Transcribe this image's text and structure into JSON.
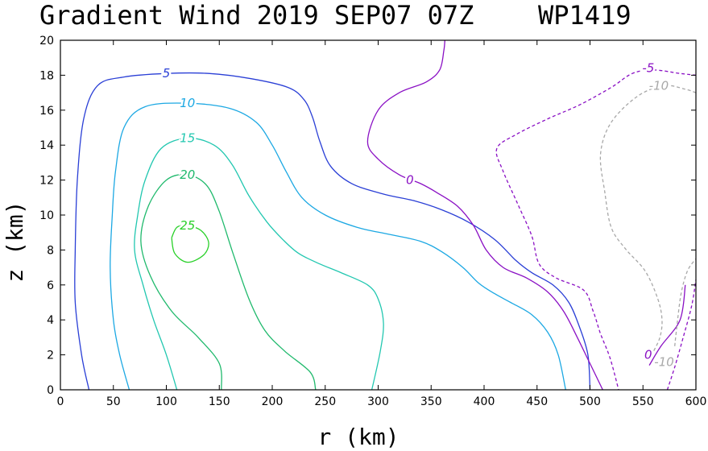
{
  "chart_data": {
    "type": "contour",
    "title": "Gradient Wind 2019 SEP07 07Z",
    "storm_id": "WP1419",
    "xlabel": "r (km)",
    "ylabel": "z (km)",
    "xlim": [
      0,
      600
    ],
    "ylim": [
      0,
      20
    ],
    "xticks": [
      "0",
      "50",
      "100",
      "150",
      "200",
      "250",
      "300",
      "350",
      "400",
      "450",
      "500",
      "550",
      "600"
    ],
    "yticks": [
      "0",
      "2",
      "4",
      "6",
      "8",
      "10",
      "12",
      "14",
      "16",
      "18",
      "20"
    ],
    "contours": [
      {
        "level": 5,
        "label": "5",
        "color": "#2a3fd6",
        "dashed": false,
        "label_at": [
          100,
          18.1
        ],
        "points": [
          [
            27,
            0
          ],
          [
            20,
            2
          ],
          [
            14,
            5
          ],
          [
            14,
            8
          ],
          [
            16,
            12
          ],
          [
            22,
            15.5
          ],
          [
            35,
            17.4
          ],
          [
            60,
            17.9
          ],
          [
            100,
            18.1
          ],
          [
            140,
            18.1
          ],
          [
            180,
            17.8
          ],
          [
            215,
            17.3
          ],
          [
            230,
            16.6
          ],
          [
            238,
            15.6
          ],
          [
            245,
            14.2
          ],
          [
            255,
            12.8
          ],
          [
            275,
            11.8
          ],
          [
            305,
            11.2
          ],
          [
            335,
            10.8
          ],
          [
            360,
            10.3
          ],
          [
            385,
            9.6
          ],
          [
            410,
            8.6
          ],
          [
            430,
            7.4
          ],
          [
            445,
            6.7
          ],
          [
            465,
            6.0
          ],
          [
            480,
            5.0
          ],
          [
            490,
            3.6
          ],
          [
            498,
            2.0
          ],
          [
            500,
            0
          ]
        ]
      },
      {
        "level": 10,
        "label": "10",
        "color": "#1ca8e3",
        "dashed": false,
        "label_at": [
          120,
          16.4
        ],
        "points": [
          [
            65,
            0
          ],
          [
            56,
            2
          ],
          [
            50,
            4
          ],
          [
            47,
            7
          ],
          [
            49,
            10
          ],
          [
            52,
            12.5
          ],
          [
            60,
            15
          ],
          [
            80,
            16.2
          ],
          [
            120,
            16.4
          ],
          [
            160,
            16.1
          ],
          [
            185,
            15.3
          ],
          [
            200,
            14.0
          ],
          [
            213,
            12.5
          ],
          [
            228,
            11.0
          ],
          [
            250,
            10.0
          ],
          [
            280,
            9.3
          ],
          [
            310,
            8.9
          ],
          [
            340,
            8.5
          ],
          [
            360,
            7.9
          ],
          [
            380,
            7.0
          ],
          [
            395,
            6.1
          ],
          [
            410,
            5.5
          ],
          [
            425,
            5.0
          ],
          [
            445,
            4.3
          ],
          [
            460,
            3.3
          ],
          [
            470,
            2.0
          ],
          [
            477,
            0
          ]
        ]
      },
      {
        "level": 15,
        "label": "15",
        "color": "#22c7b0",
        "dashed": false,
        "label_at": [
          120,
          14.4
        ],
        "points": [
          [
            110,
            0
          ],
          [
            100,
            2
          ],
          [
            88,
            4
          ],
          [
            78,
            6
          ],
          [
            70,
            8
          ],
          [
            73,
            10
          ],
          [
            80,
            12
          ],
          [
            95,
            13.8
          ],
          [
            120,
            14.4
          ],
          [
            145,
            14.0
          ],
          [
            162,
            12.9
          ],
          [
            178,
            11.1
          ],
          [
            195,
            9.6
          ],
          [
            210,
            8.6
          ],
          [
            225,
            7.8
          ],
          [
            245,
            7.2
          ],
          [
            265,
            6.7
          ],
          [
            290,
            6.0
          ],
          [
            300,
            5.2
          ],
          [
            305,
            3.8
          ],
          [
            302,
            2.2
          ],
          [
            294,
            0
          ]
        ]
      },
      {
        "level": 20,
        "label": "20",
        "color": "#1fb96c",
        "dashed": false,
        "label_at": [
          120,
          12.3
        ],
        "points": [
          [
            152,
            0
          ],
          [
            150,
            1.5
          ],
          [
            130,
            3
          ],
          [
            105,
            4.5
          ],
          [
            85,
            6.5
          ],
          [
            76,
            8.5
          ],
          [
            83,
            10.5
          ],
          [
            100,
            12
          ],
          [
            120,
            12.3
          ],
          [
            138,
            11.7
          ],
          [
            150,
            10.2
          ],
          [
            163,
            7.8
          ],
          [
            178,
            5.2
          ],
          [
            193,
            3.4
          ],
          [
            212,
            2.2
          ],
          [
            236,
            1.0
          ],
          [
            241,
            0
          ]
        ]
      },
      {
        "level": 25,
        "label": "25",
        "color": "#28d028",
        "dashed": false,
        "label_at": [
          120,
          9.4
        ],
        "points": [
          [
            105,
            8.7
          ],
          [
            110,
            9.3
          ],
          [
            120,
            9.4
          ],
          [
            133,
            9.1
          ],
          [
            140,
            8.4
          ],
          [
            135,
            7.7
          ],
          [
            120,
            7.3
          ],
          [
            108,
            7.8
          ],
          [
            105,
            8.7
          ]
        ]
      },
      {
        "level": 0,
        "label": "0",
        "color": "#8a10c4",
        "dashed": false,
        "label_at": [
          330,
          12.0
        ],
        "points": [
          [
            363,
            20
          ],
          [
            362,
            19.4
          ],
          [
            358,
            18.3
          ],
          [
            345,
            17.6
          ],
          [
            320,
            17.0
          ],
          [
            300,
            16.0
          ],
          [
            290,
            14.2
          ],
          [
            300,
            13.2
          ],
          [
            320,
            12.3
          ],
          [
            340,
            11.8
          ],
          [
            355,
            11.3
          ],
          [
            375,
            10.5
          ],
          [
            390,
            9.4
          ],
          [
            402,
            8.0
          ],
          [
            418,
            7.0
          ],
          [
            440,
            6.4
          ],
          [
            460,
            5.6
          ],
          [
            475,
            4.5
          ],
          [
            488,
            3.0
          ],
          [
            500,
            1.5
          ],
          [
            512,
            0
          ]
        ]
      },
      {
        "level": 0,
        "label": "0",
        "color": "#8a10c4",
        "dashed": false,
        "label_at": [
          555,
          2.0
        ],
        "points": [
          [
            556,
            1.4
          ],
          [
            567,
            2.5
          ],
          [
            585,
            4.0
          ],
          [
            590,
            6.0
          ]
        ]
      },
      {
        "level": -5,
        "label": "-5",
        "color": "#8a10c4",
        "dashed": true,
        "label_at": [
          555,
          18.4
        ],
        "points": [
          [
            600,
            18.0
          ],
          [
            585,
            18.1
          ],
          [
            560,
            18.3
          ],
          [
            540,
            18.1
          ],
          [
            520,
            17.3
          ],
          [
            490,
            16.3
          ],
          [
            460,
            15.5
          ],
          [
            430,
            14.6
          ],
          [
            412,
            13.8
          ],
          [
            418,
            12.5
          ],
          [
            432,
            10.6
          ],
          [
            445,
            8.8
          ],
          [
            452,
            7.2
          ],
          [
            468,
            6.4
          ],
          [
            494,
            5.7
          ],
          [
            503,
            4.5
          ],
          [
            510,
            3.2
          ],
          [
            519,
            1.8
          ],
          [
            527,
            0
          ]
        ]
      },
      {
        "level": -5,
        "label": "-5",
        "color": "#8a10c4",
        "dashed": true,
        "label_at": null,
        "points": [
          [
            573,
            0
          ],
          [
            580,
            1.3
          ],
          [
            588,
            3.0
          ],
          [
            596,
            4.8
          ],
          [
            600,
            6.3
          ]
        ]
      },
      {
        "level": -10,
        "label": "-10",
        "color": "#a8a8a8",
        "dashed": true,
        "label_at": [
          565,
          17.4
        ],
        "points": [
          [
            600,
            17.0
          ],
          [
            590,
            17.2
          ],
          [
            570,
            17.4
          ],
          [
            545,
            16.8
          ],
          [
            520,
            15.3
          ],
          [
            510,
            13.5
          ],
          [
            514,
            11.3
          ],
          [
            520,
            9.3
          ],
          [
            533,
            8.1
          ],
          [
            552,
            6.8
          ],
          [
            564,
            5.2
          ],
          [
            568,
            4.0
          ],
          [
            566,
            3.0
          ],
          [
            560,
            2.2
          ]
        ]
      },
      {
        "level": -10,
        "label": "-10",
        "color": "#a8a8a8",
        "dashed": true,
        "label_at": [
          570,
          1.6
        ],
        "points": [
          [
            580,
            2.5
          ],
          [
            582,
            3.6
          ],
          [
            586,
            5.5
          ],
          [
            592,
            6.8
          ],
          [
            600,
            7.5
          ]
        ]
      }
    ]
  }
}
